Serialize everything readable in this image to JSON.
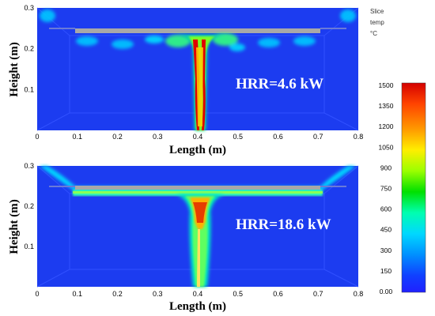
{
  "legend": {
    "lines": [
      "Slice",
      "temp",
      "°C"
    ],
    "ticks": [
      "1500",
      "1350",
      "1200",
      "1050",
      "900",
      "750",
      "600",
      "450",
      "300",
      "150",
      "0.00"
    ]
  },
  "panels": [
    {
      "hrr_label": "HRR=4.6 kW",
      "xlabel": "Length (m)",
      "ylabel": "Height (m)",
      "x_ticks": [
        "0",
        "0.1",
        "0.2",
        "0.3",
        "0.4",
        "0.5",
        "0.6",
        "0.7",
        "0.8"
      ],
      "y_ticks": [
        "0.3",
        "0.2",
        "0.1"
      ]
    },
    {
      "hrr_label": "HRR=18.6 kW",
      "xlabel": "Length (m)",
      "ylabel": "Height (m)",
      "x_ticks": [
        "0",
        "0.1",
        "0.2",
        "0.3",
        "0.4",
        "0.5",
        "0.6",
        "0.7",
        "0.8"
      ],
      "y_ticks": [
        "0.3",
        "0.2",
        "0.1"
      ]
    }
  ],
  "colors": {
    "background": "#1c3cf0",
    "ceiling": "#a8a8a8",
    "colorbar": [
      "#d40000",
      "#ff6a00",
      "#ffd500",
      "#9bff00",
      "#00e000",
      "#00ffb0",
      "#00d8ff",
      "#0090ff",
      "#1040ff",
      "#2020ff"
    ]
  }
}
